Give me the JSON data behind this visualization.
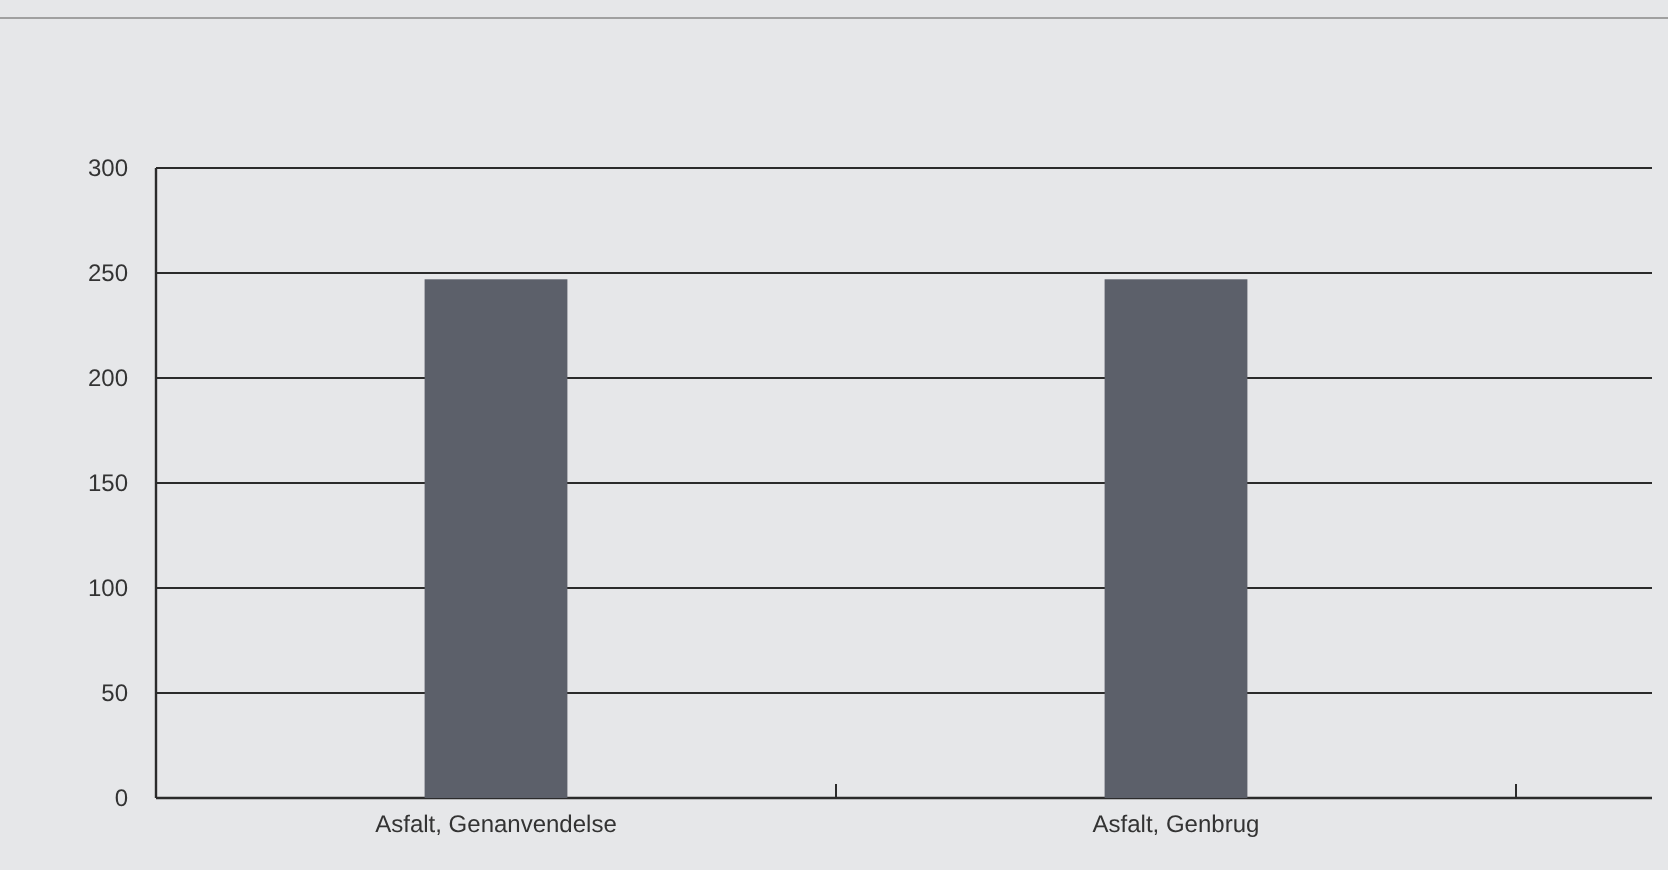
{
  "chart_data": {
    "type": "bar",
    "categories": [
      "Asfalt, Genanvendelse",
      "Asfalt, Genbrug"
    ],
    "values": [
      247,
      247
    ],
    "color": "#5c606a",
    "ylim": [
      0,
      300
    ],
    "yticks": [
      0,
      50,
      100,
      150,
      200,
      250,
      300
    ],
    "grid": "y"
  }
}
